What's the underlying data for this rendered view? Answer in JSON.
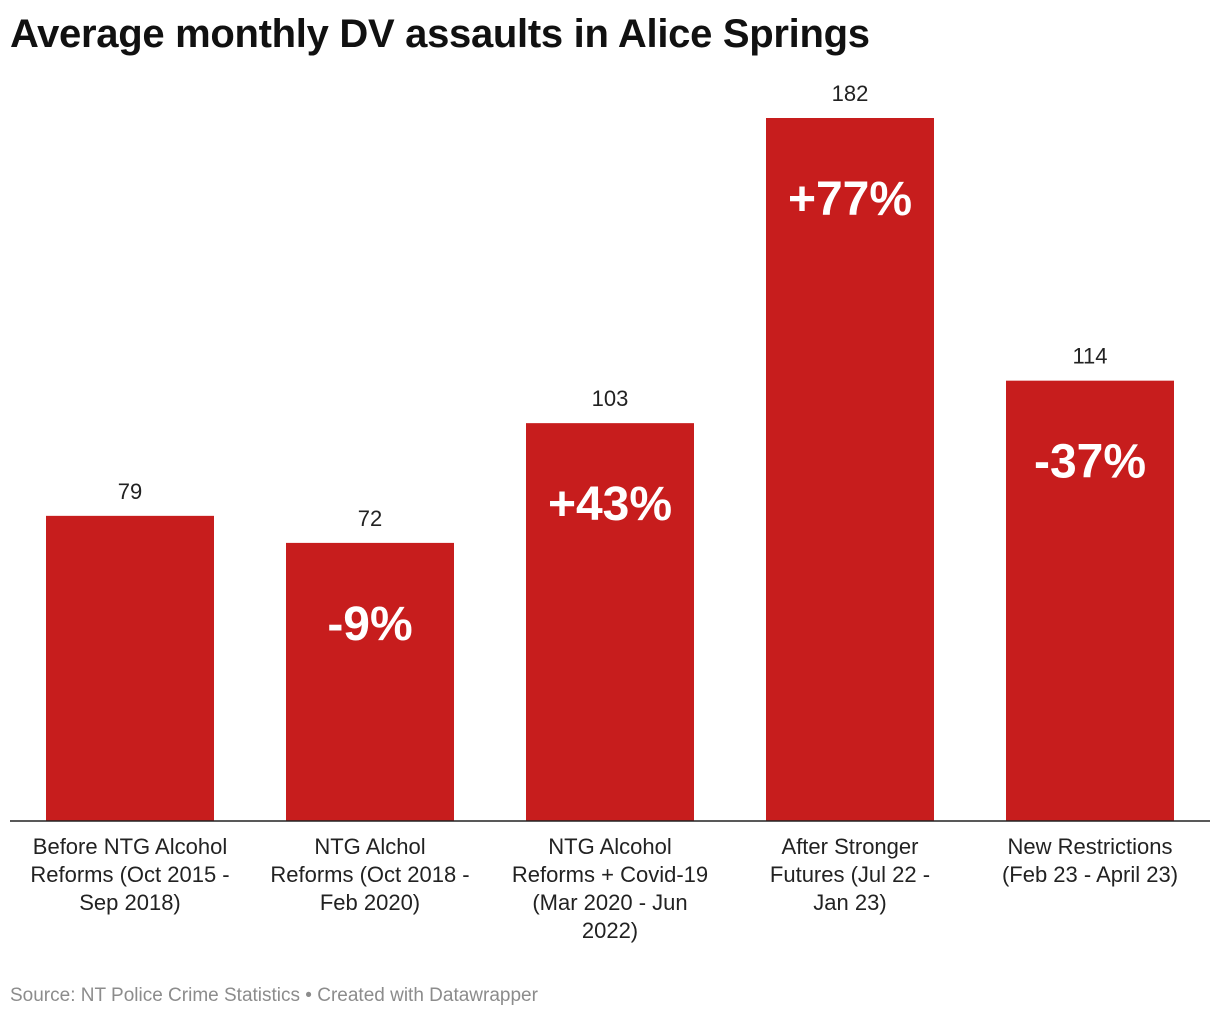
{
  "chart_data": {
    "type": "bar",
    "title": "Average monthly DV assaults in Alice Springs",
    "categories": [
      [
        "Before NTG Alcohol",
        "Reforms (Oct 2015 -",
        "Sep 2018)"
      ],
      [
        "NTG Alchol",
        "Reforms (Oct 2018 -",
        "Feb 2020)"
      ],
      [
        "NTG Alcohol",
        "Reforms + Covid-19",
        "(Mar 2020 - Jun",
        "2022)"
      ],
      [
        "After Stronger",
        "Futures (Jul 22 -",
        "Jan 23)"
      ],
      [
        "New Restrictions",
        "(Feb 23 - April 23)"
      ]
    ],
    "values": [
      79,
      72,
      103,
      182,
      114
    ],
    "value_labels": [
      "79",
      "72",
      "103",
      "182",
      "114"
    ],
    "change_labels": [
      "",
      "-9%",
      "+43%",
      "+77%",
      "-37%"
    ],
    "bar_color": "#c71d1d",
    "xlabel": "",
    "ylabel": "",
    "ylim": [
      0,
      182
    ],
    "grid": false
  },
  "footer": {
    "source": "Source: NT Police Crime Statistics",
    "separator": "•",
    "credit": "Created with Datawrapper"
  }
}
